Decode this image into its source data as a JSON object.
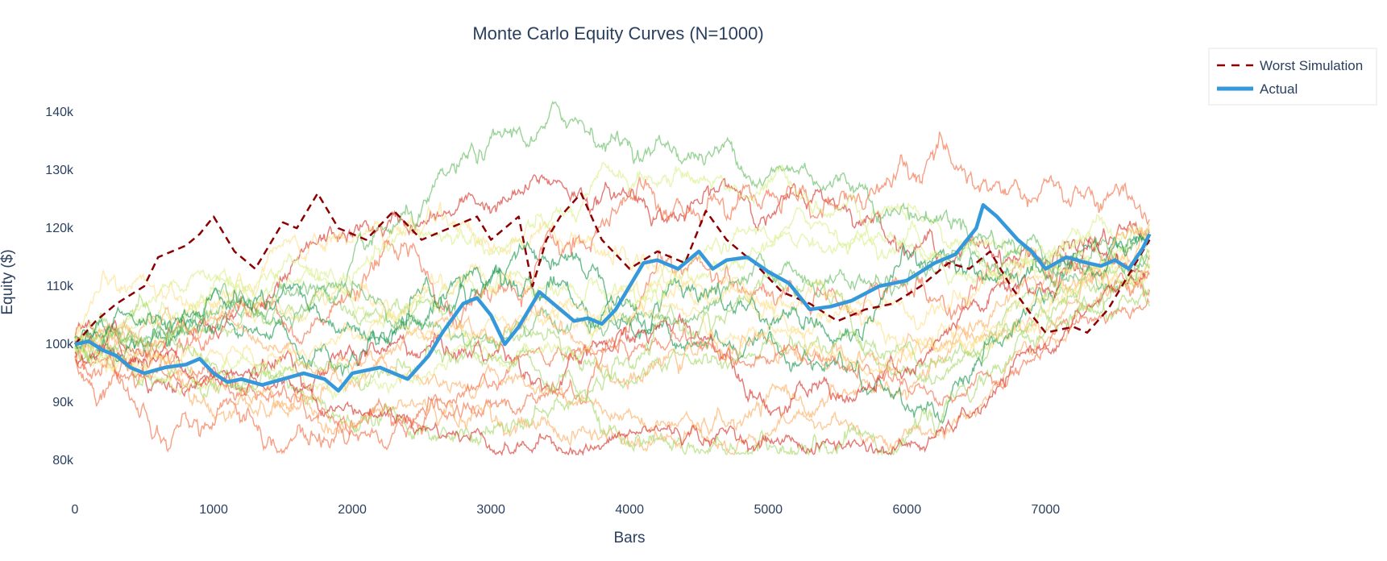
{
  "chart_data": {
    "type": "line",
    "title": "Monte Carlo Equity Curves (N=1000)",
    "xlabel": "Bars",
    "ylabel": "Equity ($)",
    "xlim": [
      0,
      7800
    ],
    "ylim": [
      76000,
      147500
    ],
    "x_ticks": [
      0,
      1000,
      2000,
      3000,
      4000,
      5000,
      6000,
      7000
    ],
    "x_tick_labels": [
      "0",
      "1000",
      "2000",
      "3000",
      "4000",
      "5000",
      "6000",
      "7000"
    ],
    "y_ticks": [
      80000,
      90000,
      100000,
      110000,
      120000,
      130000,
      140000
    ],
    "y_tick_labels": [
      "80k",
      "90k",
      "100k",
      "110k",
      "120k",
      "130k",
      "140k"
    ],
    "grid": false,
    "legend": {
      "placement": "top-right",
      "entries": [
        "Worst Simulation",
        "Actual"
      ]
    },
    "colors": {
      "worst": "#8b0000",
      "actual": "#3498db",
      "text": "#2a3f5f",
      "legend_border": "#e5e5e5",
      "sim_palette": [
        "#d73027",
        "#f46d43",
        "#fdae61",
        "#fee08b",
        "#d9ef8b",
        "#a6d96a",
        "#66bd63",
        "#1a9850"
      ]
    },
    "series": [
      {
        "name": "Worst Simulation",
        "style": "dashed",
        "x": [
          0,
          150,
          300,
          500,
          600,
          800,
          900,
          1000,
          1150,
          1300,
          1500,
          1600,
          1750,
          1900,
          2100,
          2300,
          2500,
          2700,
          2900,
          3000,
          3200,
          3300,
          3400,
          3500,
          3650,
          3800,
          4000,
          4200,
          4400,
          4550,
          4700,
          4900,
          5100,
          5300,
          5500,
          5700,
          5900,
          6100,
          6300,
          6450,
          6600,
          6750,
          6900,
          7000,
          7200,
          7300,
          7450,
          7600,
          7750
        ],
        "y": [
          100000,
          104000,
          107000,
          110000,
          115000,
          117000,
          119000,
          122000,
          116000,
          113000,
          121000,
          120000,
          126000,
          120000,
          118000,
          123000,
          118000,
          120000,
          122000,
          118000,
          122000,
          110000,
          118000,
          122000,
          126000,
          118000,
          113000,
          116000,
          114000,
          123000,
          118000,
          114000,
          109000,
          107000,
          104000,
          106000,
          107000,
          110000,
          114000,
          113000,
          116000,
          110000,
          105000,
          102000,
          103000,
          102000,
          106000,
          112000,
          118000
        ]
      },
      {
        "name": "Actual",
        "style": "solid",
        "x": [
          0,
          100,
          200,
          300,
          400,
          500,
          650,
          800,
          900,
          1000,
          1100,
          1200,
          1350,
          1500,
          1650,
          1800,
          1900,
          2000,
          2200,
          2400,
          2550,
          2650,
          2800,
          2900,
          3000,
          3100,
          3200,
          3350,
          3500,
          3600,
          3700,
          3800,
          3900,
          4000,
          4100,
          4200,
          4350,
          4500,
          4600,
          4700,
          4850,
          5000,
          5150,
          5300,
          5450,
          5600,
          5800,
          6000,
          6200,
          6350,
          6500,
          6550,
          6650,
          6800,
          6900,
          7000,
          7150,
          7300,
          7400,
          7500,
          7600,
          7700,
          7750
        ],
        "y": [
          100000,
          100500,
          99000,
          98000,
          96000,
          95000,
          96000,
          96500,
          97500,
          95000,
          93500,
          94000,
          93000,
          94000,
          95000,
          94000,
          92000,
          95000,
          96000,
          94000,
          98000,
          102000,
          107000,
          108000,
          105000,
          100000,
          103000,
          109000,
          106000,
          104000,
          104500,
          103500,
          106000,
          110000,
          114000,
          114500,
          113000,
          116000,
          113000,
          114500,
          115000,
          112500,
          110500,
          106000,
          106500,
          107500,
          110000,
          111000,
          114000,
          115500,
          120000,
          124000,
          122000,
          118000,
          116000,
          113000,
          115000,
          114000,
          113500,
          114500,
          113000,
          116500,
          119000
        ]
      }
    ]
  }
}
